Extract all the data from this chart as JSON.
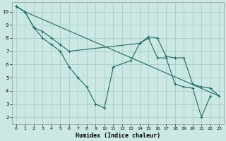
{
  "xlabel": "Humidex (Indice chaleur)",
  "bg_color": "#cce8e4",
  "grid_color": "#aacccc",
  "line_color": "#1e6b5e",
  "xlim": [
    -0.5,
    23.5
  ],
  "ylim": [
    1.5,
    10.7
  ],
  "yticks": [
    2,
    3,
    4,
    5,
    6,
    7,
    8,
    9,
    10
  ],
  "xticks": [
    0,
    1,
    2,
    3,
    4,
    5,
    6,
    7,
    8,
    9,
    10,
    11,
    12,
    13,
    14,
    15,
    16,
    17,
    18,
    19,
    20,
    21,
    22,
    23
  ],
  "line1_x": [
    0,
    1,
    2,
    3,
    4,
    5,
    6,
    7,
    8,
    9,
    10,
    11,
    13,
    14,
    15,
    16,
    17,
    18,
    19,
    20,
    21,
    22,
    23
  ],
  "line1_y": [
    10.4,
    10.0,
    8.8,
    8.0,
    7.5,
    7.0,
    5.8,
    5.0,
    4.3,
    3.0,
    2.7,
    5.8,
    6.3,
    7.6,
    8.0,
    6.5,
    6.5,
    4.5,
    4.3,
    4.2,
    2.0,
    3.6,
    null
  ],
  "line2_x": [
    0,
    1,
    2,
    3,
    4,
    5,
    6,
    14,
    15,
    16,
    17,
    18,
    19,
    20,
    21,
    22,
    23
  ],
  "line2_y": [
    10.4,
    10.0,
    8.8,
    8.5,
    8.0,
    7.5,
    7.0,
    7.6,
    8.1,
    8.0,
    6.6,
    6.5,
    6.5,
    4.5,
    4.3,
    4.2,
    3.6
  ],
  "line3_x": [
    0,
    1,
    23
  ],
  "line3_y": [
    10.4,
    10.0,
    3.6
  ]
}
